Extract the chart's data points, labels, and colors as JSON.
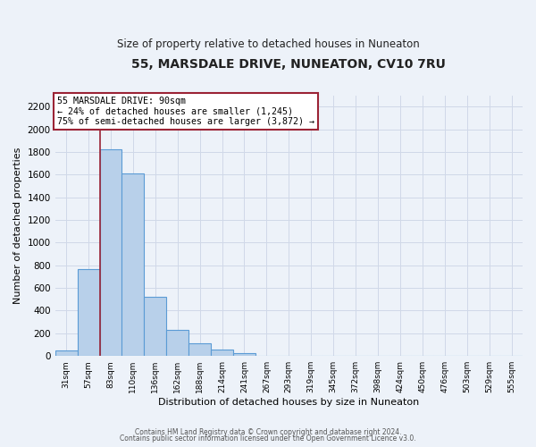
{
  "title": "55, MARSDALE DRIVE, NUNEATON, CV10 7RU",
  "subtitle": "Size of property relative to detached houses in Nuneaton",
  "xlabel": "Distribution of detached houses by size in Nuneaton",
  "ylabel": "Number of detached properties",
  "footer_line1": "Contains HM Land Registry data © Crown copyright and database right 2024.",
  "footer_line2": "Contains public sector information licensed under the Open Government Licence v3.0.",
  "bar_labels": [
    "31sqm",
    "57sqm",
    "83sqm",
    "110sqm",
    "136sqm",
    "162sqm",
    "188sqm",
    "214sqm",
    "241sqm",
    "267sqm",
    "293sqm",
    "319sqm",
    "345sqm",
    "372sqm",
    "398sqm",
    "424sqm",
    "450sqm",
    "476sqm",
    "503sqm",
    "529sqm",
    "555sqm"
  ],
  "bar_values": [
    50,
    770,
    1820,
    1610,
    520,
    230,
    110,
    55,
    25,
    0,
    0,
    0,
    0,
    0,
    0,
    0,
    0,
    0,
    0,
    0,
    0
  ],
  "bar_color": "#b8d0ea",
  "bar_edgecolor": "#5b9bd5",
  "annotation_text": "55 MARSDALE DRIVE: 90sqm\n← 24% of detached houses are smaller (1,245)\n75% of semi-detached houses are larger (3,872) →",
  "vline_color": "#9b2335",
  "annotation_box_edgecolor": "#9b2335",
  "ylim": [
    0,
    2300
  ],
  "yticks": [
    0,
    200,
    400,
    600,
    800,
    1000,
    1200,
    1400,
    1600,
    1800,
    2000,
    2200
  ],
  "grid_color": "#d0d8e8",
  "bg_color": "#edf2f9",
  "plot_bg_color": "#edf2f9",
  "title_color": "#222222",
  "footer_color": "#555555"
}
